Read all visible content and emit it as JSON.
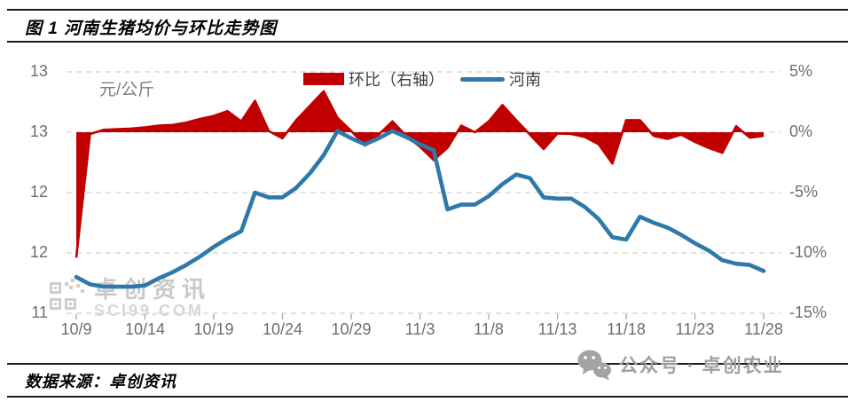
{
  "header": {
    "title": "图 1  河南生猪均价与环比走势图"
  },
  "footer": {
    "source": "数据来源：卓创资讯",
    "wechat_text": "公众号 · 卓创农业"
  },
  "watermark": {
    "line1": "卓创资讯",
    "line2": "SCI99.COM"
  },
  "colors": {
    "area": "#C00000",
    "line": "#2E79A9",
    "grid": "#d9d9d9",
    "tick": "#a6a6a6",
    "axis_text": "#6e6e6e"
  },
  "chart_data": {
    "type": "area+line combo",
    "title": "河南生猪均价与环比走势图",
    "unit_label": "元/公斤",
    "legend": [
      "环比（右轴）",
      "河南"
    ],
    "legend_position": "top-center",
    "grid": "dashed-horizontal",
    "x": [
      "10/9",
      "10/10",
      "10/11",
      "10/12",
      "10/13",
      "10/14",
      "10/15",
      "10/16",
      "10/17",
      "10/18",
      "10/19",
      "10/20",
      "10/21",
      "10/22",
      "10/23",
      "10/24",
      "10/25",
      "10/26",
      "10/27",
      "10/28",
      "10/29",
      "10/30",
      "10/31",
      "11/1",
      "11/2",
      "11/3",
      "11/4",
      "11/5",
      "11/6",
      "11/7",
      "11/8",
      "11/9",
      "11/10",
      "11/11",
      "11/12",
      "11/13",
      "11/14",
      "11/15",
      "11/16",
      "11/17",
      "11/18",
      "11/19",
      "11/20",
      "11/21",
      "11/22",
      "11/23",
      "11/24",
      "11/25",
      "11/26",
      "11/27",
      "11/28"
    ],
    "x_tick_step": 5,
    "left_axis": {
      "tick_labels": [
        "13",
        "13",
        "12",
        "12",
        "11"
      ],
      "tick_values": [
        13,
        12.5,
        12,
        11.5,
        11
      ],
      "range": [
        11,
        13
      ]
    },
    "right_axis": {
      "tick_labels": [
        "5%",
        "0%",
        "-5%",
        "-10%",
        "-15%"
      ],
      "tick_values": [
        5,
        0,
        -5,
        -10,
        -15
      ],
      "range": [
        -15,
        5
      ]
    },
    "series": [
      {
        "name": "环比",
        "axis": "right",
        "type": "area",
        "unit": "%",
        "values": [
          -10.4,
          -0.15,
          0.2,
          0.25,
          0.3,
          0.4,
          0.55,
          0.6,
          0.8,
          1.1,
          1.35,
          1.75,
          0.9,
          2.6,
          0.1,
          -0.5,
          1.0,
          2.2,
          3.4,
          1.2,
          0.1,
          -1.1,
          -0.2,
          0.9,
          -0.3,
          -1.2,
          -2.3,
          -1.3,
          0.55,
          0.0,
          0.9,
          2.25,
          1.0,
          -0.2,
          -1.4,
          -0.1,
          -0.15,
          -0.4,
          -1.0,
          -2.6,
          1.0,
          1.0,
          -0.3,
          -0.55,
          -0.2,
          -0.8,
          -1.3,
          -1.7,
          0.5,
          -0.45,
          -0.3
        ]
      },
      {
        "name": "河南",
        "axis": "left",
        "type": "line",
        "unit": "元/公斤",
        "values": [
          11.3,
          11.24,
          11.22,
          11.22,
          11.22,
          11.23,
          11.29,
          11.34,
          11.4,
          11.47,
          11.55,
          11.62,
          11.68,
          12.0,
          11.96,
          11.96,
          12.04,
          12.16,
          12.31,
          12.51,
          12.45,
          12.4,
          12.45,
          12.51,
          12.46,
          12.4,
          12.35,
          11.86,
          11.9,
          11.9,
          11.97,
          12.07,
          12.15,
          12.12,
          11.96,
          11.95,
          11.95,
          11.88,
          11.78,
          11.63,
          11.61,
          11.8,
          11.75,
          11.71,
          11.65,
          11.58,
          11.52,
          11.44,
          11.41,
          11.4,
          11.35
        ]
      }
    ]
  }
}
